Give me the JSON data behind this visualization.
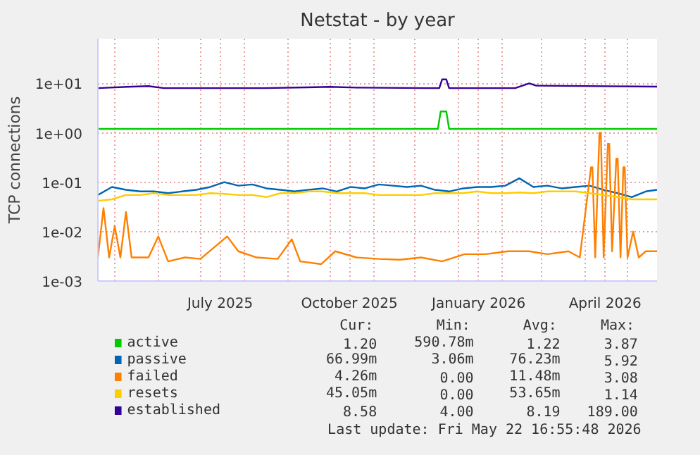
{
  "chart_data": {
    "type": "line",
    "title": "Netstat - by year",
    "ylabel": "TCP connections",
    "log": true,
    "grid": true,
    "legend": "bottom",
    "line_style": "solid",
    "xlim": [
      "2025-04-19",
      "2026-05-22"
    ],
    "xticks": [
      {
        "value": "2025-05-01",
        "label": null
      },
      {
        "value": "2025-06-01",
        "label": null
      },
      {
        "value": "2025-07-01",
        "label": null
      },
      {
        "value": "2025-07-15",
        "label": "July 2025"
      },
      {
        "value": "2025-08-01",
        "label": null
      },
      {
        "value": "2025-09-01",
        "label": null
      },
      {
        "value": "2025-10-01",
        "label": null
      },
      {
        "value": "2025-10-15",
        "label": "October 2025"
      },
      {
        "value": "2025-11-01",
        "label": null
      },
      {
        "value": "2025-12-01",
        "label": null
      },
      {
        "value": "2026-01-01",
        "label": null
      },
      {
        "value": "2026-01-15",
        "label": "January 2026"
      },
      {
        "value": "2026-02-01",
        "label": null
      },
      {
        "value": "2026-03-01",
        "label": null
      },
      {
        "value": "2026-04-01",
        "label": null
      },
      {
        "value": "2026-04-15",
        "label": "April 2026"
      },
      {
        "value": "2026-05-01",
        "label": null
      }
    ],
    "ylim": [
      0.001,
      80
    ],
    "yticks": [
      {
        "value": 0.001,
        "label": "1e-03"
      },
      {
        "value": 0.01,
        "label": "1e-02"
      },
      {
        "value": 0.1,
        "label": "1e-01"
      },
      {
        "value": 1,
        "label": "1e+00"
      },
      {
        "value": 10,
        "label": "1e+01"
      }
    ],
    "x": [
      "2025-04-19",
      "2025-04-29",
      "2025-05-09",
      "2025-05-19",
      "2025-05-29",
      "2025-06-08",
      "2025-06-18",
      "2025-06-28",
      "2025-07-08",
      "2025-07-18",
      "2025-07-28",
      "2025-08-07",
      "2025-08-17",
      "2025-08-27",
      "2025-09-06",
      "2025-09-16",
      "2025-09-26",
      "2025-10-06",
      "2025-10-16",
      "2025-10-26",
      "2025-11-05",
      "2025-11-15",
      "2025-11-25",
      "2025-12-05",
      "2025-12-15",
      "2025-12-25",
      "2026-01-04",
      "2026-01-14",
      "2026-01-24",
      "2026-02-03",
      "2026-02-13",
      "2026-02-23",
      "2026-03-05",
      "2026-03-15",
      "2026-03-25",
      "2026-04-04",
      "2026-04-14",
      "2026-04-24",
      "2026-05-04",
      "2026-05-14",
      "2026-05-22"
    ],
    "series": [
      {
        "name": "active",
        "color": "#00cc00",
        "x": [
          "2025-04-19",
          "2025-12-17",
          "2025-12-19",
          "2025-12-23",
          "2025-12-25",
          "2026-05-22"
        ],
        "values": [
          1.2,
          1.2,
          2.7,
          2.7,
          1.2,
          1.2
        ]
      },
      {
        "name": "passive",
        "color": "#0066b3",
        "values": [
          0.055,
          0.08,
          0.07,
          0.065,
          0.065,
          0.06,
          0.065,
          0.07,
          0.08,
          0.1,
          0.085,
          0.09,
          0.075,
          0.07,
          0.065,
          0.07,
          0.075,
          0.065,
          0.08,
          0.075,
          0.09,
          0.085,
          0.08,
          0.085,
          0.07,
          0.065,
          0.075,
          0.08,
          0.08,
          0.085,
          0.12,
          0.08,
          0.085,
          0.075,
          0.08,
          0.085,
          0.07,
          0.06,
          0.05,
          0.065,
          0.07
        ]
      },
      {
        "name": "failed",
        "color": "#ff8000",
        "x": [
          "2025-04-19",
          "2025-04-23",
          "2025-04-27",
          "2025-05-01",
          "2025-05-05",
          "2025-05-09",
          "2025-05-13",
          "2025-05-25",
          "2025-06-01",
          "2025-06-08",
          "2025-06-20",
          "2025-07-01",
          "2025-07-20",
          "2025-07-28",
          "2025-08-10",
          "2025-08-25",
          "2025-09-04",
          "2025-09-10",
          "2025-09-25",
          "2025-10-05",
          "2025-10-20",
          "2025-11-05",
          "2025-11-20",
          "2025-12-05",
          "2025-12-20",
          "2026-01-05",
          "2026-01-20",
          "2026-02-05",
          "2026-02-20",
          "2026-03-05",
          "2026-03-20",
          "2026-03-28",
          "2026-04-05",
          "2026-04-06",
          "2026-04-08",
          "2026-04-11",
          "2026-04-12",
          "2026-04-14",
          "2026-04-17",
          "2026-04-18",
          "2026-04-20",
          "2026-04-23",
          "2026-04-24",
          "2026-04-26",
          "2026-04-28",
          "2026-04-29",
          "2026-05-01",
          "2026-05-05",
          "2026-05-09",
          "2026-05-14",
          "2026-05-22"
        ],
        "values": [
          0.003,
          0.03,
          0.003,
          0.013,
          0.003,
          0.025,
          0.003,
          0.003,
          0.008,
          0.0025,
          0.003,
          0.0028,
          0.008,
          0.004,
          0.003,
          0.0028,
          0.007,
          0.0025,
          0.0022,
          0.004,
          0.003,
          0.0028,
          0.0027,
          0.003,
          0.0025,
          0.0035,
          0.0035,
          0.004,
          0.004,
          0.0035,
          0.004,
          0.003,
          0.2,
          0.2,
          0.003,
          1.0,
          1.0,
          0.003,
          0.6,
          0.6,
          0.004,
          0.3,
          0.3,
          0.003,
          0.2,
          0.2,
          0.003,
          0.01,
          0.003,
          0.004,
          0.004
        ]
      },
      {
        "name": "resets",
        "color": "#ffcc00",
        "values": [
          0.042,
          0.045,
          0.055,
          0.055,
          0.06,
          0.055,
          0.055,
          0.055,
          0.06,
          0.058,
          0.055,
          0.055,
          0.05,
          0.06,
          0.06,
          0.065,
          0.065,
          0.06,
          0.06,
          0.06,
          0.055,
          0.055,
          0.055,
          0.055,
          0.06,
          0.06,
          0.06,
          0.065,
          0.06,
          0.06,
          0.062,
          0.06,
          0.065,
          0.065,
          0.065,
          0.06,
          0.055,
          0.05,
          0.045,
          0.045,
          0.045
        ]
      },
      {
        "name": "established",
        "color": "#330099",
        "x": [
          "2025-04-19",
          "2025-05-10",
          "2025-05-25",
          "2025-06-05",
          "2025-08-15",
          "2025-09-15",
          "2025-10-01",
          "2025-10-20",
          "2025-12-10",
          "2025-12-18",
          "2025-12-20",
          "2025-12-23",
          "2025-12-25",
          "2026-02-10",
          "2026-02-20",
          "2026-02-25",
          "2026-05-22"
        ],
        "values": [
          8,
          8.5,
          8.8,
          8,
          8,
          8.3,
          8.5,
          8.2,
          8,
          8,
          12,
          12,
          8,
          8,
          10,
          9,
          8.6
        ]
      }
    ],
    "annotations": [
      "Cur:",
      "Min:",
      "Avg:",
      "Max:",
      "1.20",
      "590.78m",
      "1.22",
      "3.87",
      "66.99m",
      "3.06m",
      "76.23m",
      "5.92",
      "4.26m",
      "0.00",
      "11.48m",
      "3.08",
      "45.05m",
      "0.00",
      "53.65m",
      "1.14",
      "8.58",
      "4.00",
      "8.19",
      "189.00",
      "Last update: Fri May 22 16:55:48 2026"
    ]
  }
}
